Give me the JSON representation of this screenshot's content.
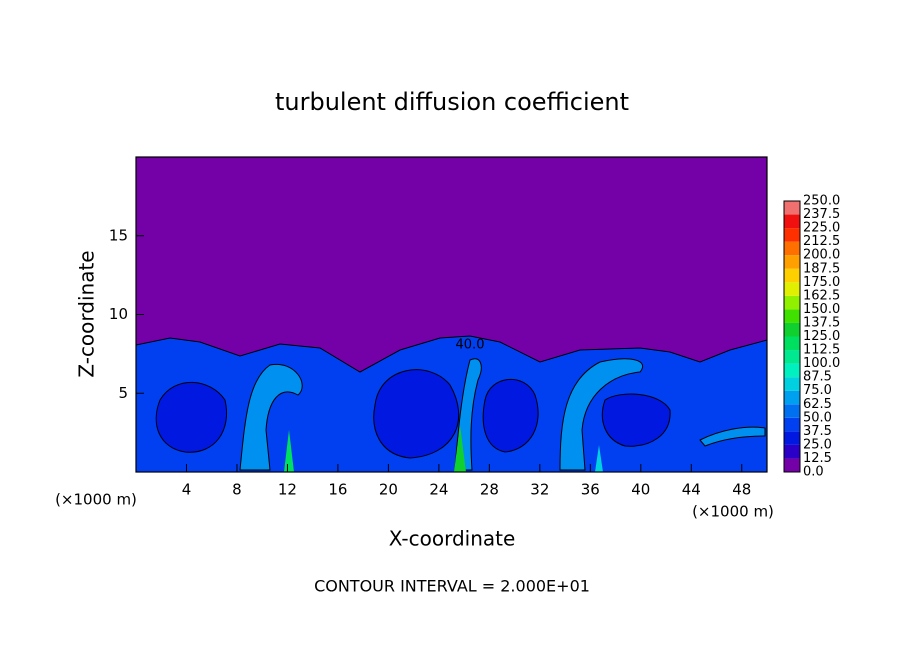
{
  "chart_data": {
    "type": "contour",
    "title": "turbulent diffusion coefficient",
    "x_label": "X-coordinate",
    "y_label": "Z-coordinate",
    "x_unit": "(×1000 m)",
    "x_unit_right": "(×1000 m)",
    "footer": "CONTOUR INTERVAL = 2.000E+01",
    "annotation": "40.0",
    "xlim": [
      0,
      50
    ],
    "ylim": [
      0,
      20
    ],
    "xticks": [
      4,
      8,
      12,
      16,
      20,
      24,
      28,
      32,
      36,
      40,
      44,
      48
    ],
    "yticks": [
      5,
      10,
      15
    ],
    "colorbar_ticks": [
      {
        "value": 0,
        "label": "0.0"
      },
      {
        "value": 12.5,
        "label": "12.5"
      },
      {
        "value": 25,
        "label": "25.0"
      },
      {
        "value": 37.5,
        "label": "37.5"
      },
      {
        "value": 50,
        "label": "50.0"
      },
      {
        "value": 62.5,
        "label": "62.5"
      },
      {
        "value": 75,
        "label": "75.0"
      },
      {
        "value": 87.5,
        "label": "87.5"
      },
      {
        "value": 100,
        "label": "100.0"
      },
      {
        "value": 112.5,
        "label": "112.5"
      },
      {
        "value": 125,
        "label": "125.0"
      },
      {
        "value": 137.5,
        "label": "137.5"
      },
      {
        "value": 150,
        "label": "150.0"
      },
      {
        "value": 162.5,
        "label": "162.5"
      },
      {
        "value": 175,
        "label": "175.0"
      },
      {
        "value": 187.5,
        "label": "187.5"
      },
      {
        "value": 200,
        "label": "200.0"
      },
      {
        "value": 212.5,
        "label": "212.5"
      },
      {
        "value": 225,
        "label": "225.0"
      },
      {
        "value": 237.5,
        "label": "237.5"
      },
      {
        "value": 250,
        "label": "250.0"
      }
    ],
    "colorbar_lim": [
      0,
      250
    ],
    "colors": [
      "#7400a8",
      "#2a00c8",
      "#0018e0",
      "#0040f0",
      "#0070f0",
      "#00a0f0",
      "#00d0e0",
      "#00f0c0",
      "#00e890",
      "#00e060",
      "#10d030",
      "#40e000",
      "#90f000",
      "#e0f000",
      "#ffd000",
      "#ffa000",
      "#ff7000",
      "#ff3000",
      "#f01010",
      "#f07070"
    ]
  }
}
